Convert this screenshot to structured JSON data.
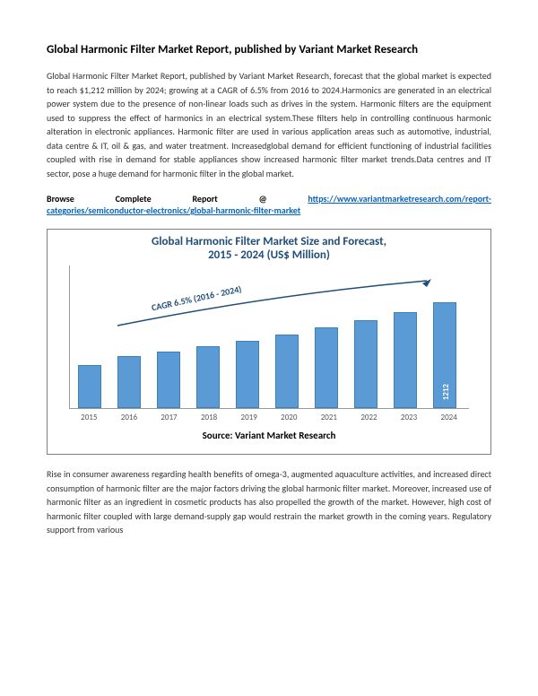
{
  "title": "Global Harmonic Filter Market Report, published by Variant Market Research",
  "paragraph1": "Global Harmonic Filter Market Report, published by Variant Market Research, forecast that the global market is expected to reach $1,212 million by 2024; growing at a CAGR of 6.5% from 2016 to 2024.Harmonics are generated in an electrical power system due to the presence of non-linear loads such as drives in the system. Harmonic filters are the equipment used to suppress the effect of harmonics in an electrical system.These filters help in controlling continuous harmonic alteration in electronic appliances. Harmonic filter are used in various application areas such as automotive, industrial, data centre & IT, oil & gas, and water treatment. Increasedglobal demand for efficient functioning of industrial facilities coupled with rise in demand for stable appliances show increased harmonic filter market trends.Data centres and IT sector, pose a huge demand for harmonic filter in the global market.",
  "browse_label": "Browse",
  "browse_complete": "Complete",
  "browse_report": "Report",
  "browse_at": "@",
  "browse_url_part1": "https://www.variantmarketresearch.com/report-",
  "browse_url_part2": "categories/semiconductor-electronics/global-harmonic-filter-market",
  "chart": {
    "title_line1": "Global Harmonic Filter Market Size and Forecast,",
    "title_line2": "2015 - 2024 (US$ Million)",
    "cagr_text": "CAGR 6.5% (2016 - 2024)",
    "source": "Source: Variant Market Research",
    "years": [
      "2015",
      "2016",
      "2017",
      "2018",
      "2019",
      "2020",
      "2021",
      "2022",
      "2023",
      "2024"
    ],
    "heights": [
      48,
      58,
      63,
      69,
      75,
      82,
      90,
      98,
      107,
      118
    ],
    "final_value": "1212",
    "bar_color": "#5b9bd5",
    "bar_border": "#3d7fb8",
    "title_color": "#1f4e79"
  },
  "paragraph2": "Rise in consumer awareness regarding health benefits of omega-3, augmented aquaculture activities, and increased direct consumption of harmonic filter are the major factors driving the global harmonic filter market. Moreover, increased use of harmonic filter as an ingredient in cosmetic products has also propelled the growth of the market. However, high cost of harmonic filter coupled with large demand-supply gap would restrain the market growth in the coming years. Regulatory support from various"
}
